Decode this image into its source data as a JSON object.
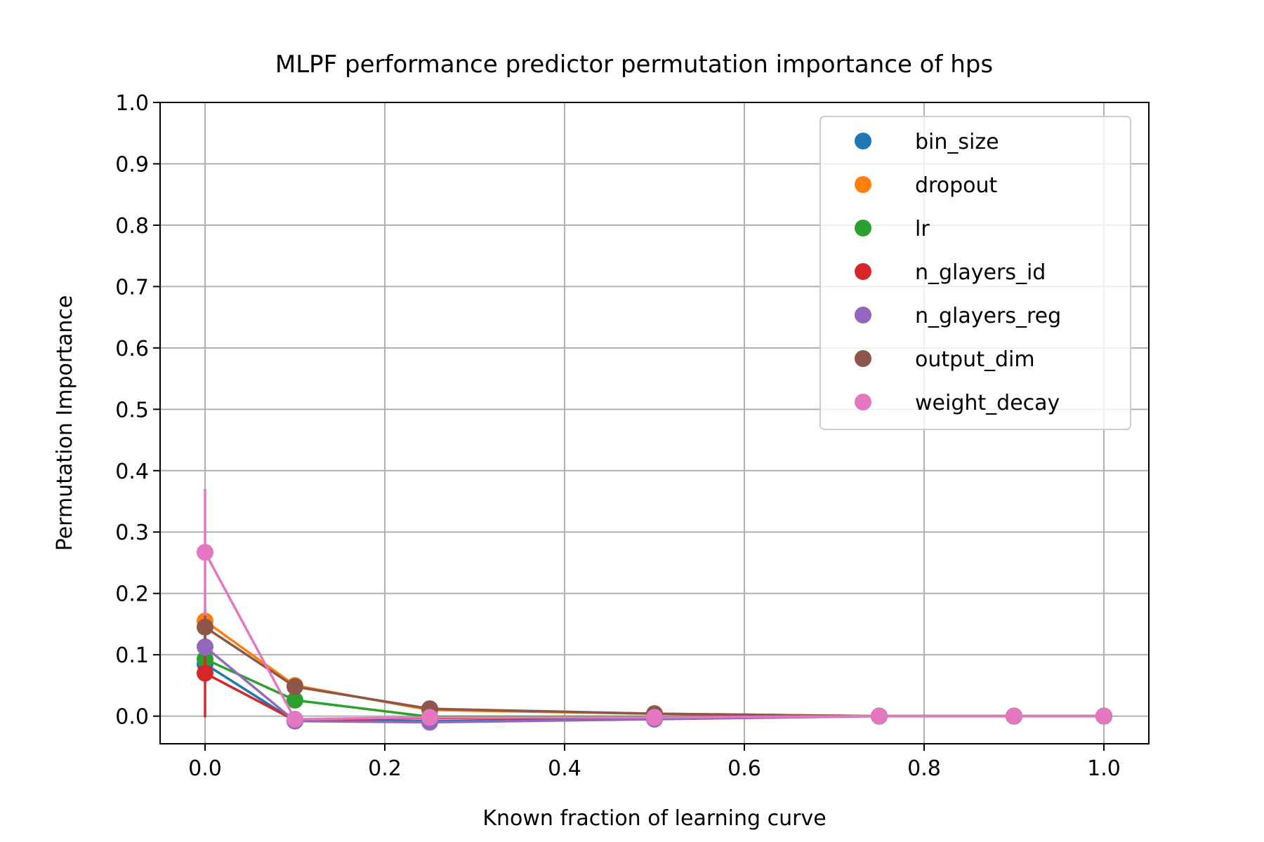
{
  "chart_data": {
    "type": "line",
    "title": "MLPF performance predictor permutation importance of hps",
    "xlabel": "Known fraction of learning curve",
    "ylabel": "Permutation Importance",
    "xlim": [
      -0.05,
      1.05
    ],
    "ylim": [
      -0.045,
      1.0
    ],
    "xticks": [
      0.0,
      0.2,
      0.4,
      0.6,
      0.8,
      1.0
    ],
    "xtick_labels": [
      "0.0",
      "0.2",
      "0.4",
      "0.6",
      "0.8",
      "1.0"
    ],
    "yticks": [
      0.0,
      0.1,
      0.2,
      0.3,
      0.4,
      0.5,
      0.6,
      0.7,
      0.8,
      0.9,
      1.0
    ],
    "ytick_labels": [
      "0.0",
      "0.1",
      "0.2",
      "0.3",
      "0.4",
      "0.5",
      "0.6",
      "0.7",
      "0.8",
      "0.9",
      "1.0"
    ],
    "grid": true,
    "legend_position": "top-right",
    "x": [
      0.0,
      0.1,
      0.25,
      0.5,
      0.75,
      0.9,
      1.0
    ],
    "series": [
      {
        "name": "bin_size",
        "color": "#1f77b4",
        "values": [
          0.085,
          -0.008,
          -0.008,
          -0.004,
          0.0,
          0.0,
          0.0
        ],
        "err": [
          0.015,
          0.004,
          0.002,
          0.002,
          0.0,
          0.0,
          0.0
        ]
      },
      {
        "name": "dropout",
        "color": "#ff7f0e",
        "values": [
          0.155,
          0.05,
          0.01,
          0.004,
          0.0,
          0.0,
          0.0
        ],
        "err": [
          0.02,
          0.008,
          0.003,
          0.002,
          0.0,
          0.0,
          0.0
        ]
      },
      {
        "name": "lr",
        "color": "#2ca02c",
        "values": [
          0.093,
          0.026,
          -0.001,
          -0.001,
          0.0,
          0.0,
          0.0
        ],
        "err": [
          0.012,
          0.005,
          0.002,
          0.001,
          0.0,
          0.0,
          0.0
        ]
      },
      {
        "name": "n_glayers_id",
        "color": "#d62728",
        "values": [
          0.07,
          -0.007,
          -0.003,
          -0.002,
          0.0,
          0.0,
          0.0
        ],
        "err": [
          0.072,
          0.004,
          0.002,
          0.001,
          0.0,
          0.0,
          0.0
        ]
      },
      {
        "name": "n_glayers_reg",
        "color": "#9467bd",
        "values": [
          0.113,
          -0.008,
          -0.01,
          -0.005,
          0.0,
          0.0,
          0.0
        ],
        "err": [
          0.015,
          0.004,
          0.003,
          0.002,
          0.0,
          0.0,
          0.0
        ]
      },
      {
        "name": "output_dim",
        "color": "#8c564b",
        "values": [
          0.145,
          0.048,
          0.012,
          0.004,
          0.0,
          0.0,
          0.0
        ],
        "err": [
          0.02,
          0.007,
          0.003,
          0.002,
          0.0,
          0.0,
          0.0
        ]
      },
      {
        "name": "weight_decay",
        "color": "#e377c2",
        "values": [
          0.267,
          -0.005,
          -0.002,
          -0.002,
          0.0,
          0.0,
          0.0
        ],
        "err": [
          0.103,
          0.004,
          0.002,
          0.001,
          0.0,
          0.0,
          0.0
        ]
      }
    ]
  }
}
